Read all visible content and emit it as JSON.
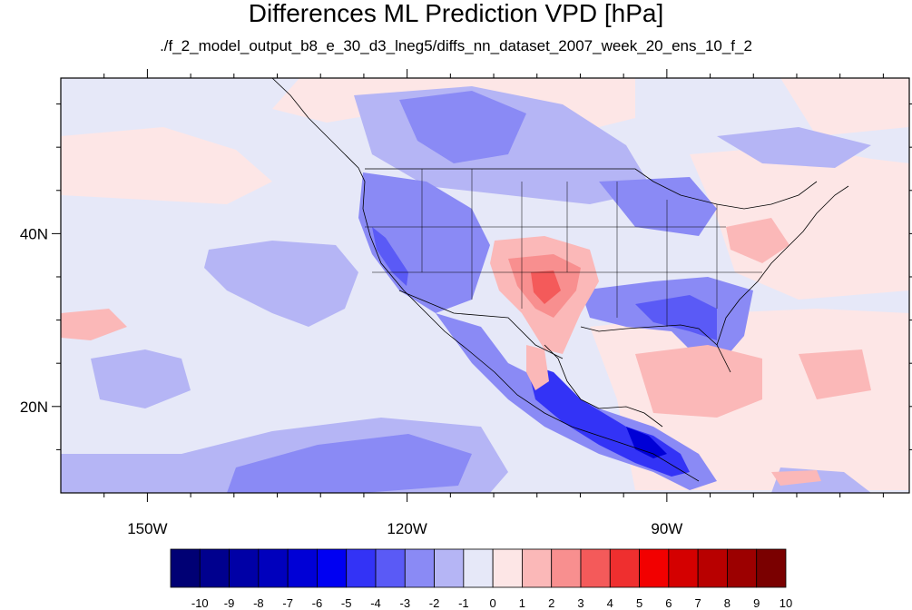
{
  "title": "Differences ML Prediction VPD [hPa]",
  "subtitle": "./f_2_model_output_b8_e_30_d3_lneg5/diffs_nn_dataset_2007_week_20_ens_10_f_2",
  "map": {
    "projection": "cylindrical-equidistant",
    "lon_range": [
      -160,
      -62
    ],
    "lat_range": [
      10,
      58
    ],
    "lon_ticks": [
      {
        "value": -150,
        "label": "150W"
      },
      {
        "value": -120,
        "label": "120W"
      },
      {
        "value": -90,
        "label": "90W"
      }
    ],
    "lat_ticks": [
      {
        "value": 40,
        "label": "40N"
      },
      {
        "value": 20,
        "label": "20N"
      }
    ],
    "background_color": "#e6e8f8"
  },
  "colorbar": {
    "labels": [
      "-10",
      "-9",
      "-8",
      "-7",
      "-6",
      "-5",
      "-4",
      "-3",
      "-2",
      "-1",
      "0",
      "1",
      "2",
      "3",
      "4",
      "5",
      "6",
      "7",
      "8",
      "9",
      "10"
    ],
    "colors": [
      "#000074",
      "#00008e",
      "#0000a6",
      "#0000bd",
      "#0000d6",
      "#0000f2",
      "#3333f6",
      "#5a5af6",
      "#8a8af5",
      "#b5b5f5",
      "#e6e8f8",
      "#fde6e6",
      "#fbb8b8",
      "#f88f8f",
      "#f45a5a",
      "#ef2f2f",
      "#f20000",
      "#d40000",
      "#b80000",
      "#9c0000",
      "#7a0000"
    ]
  }
}
